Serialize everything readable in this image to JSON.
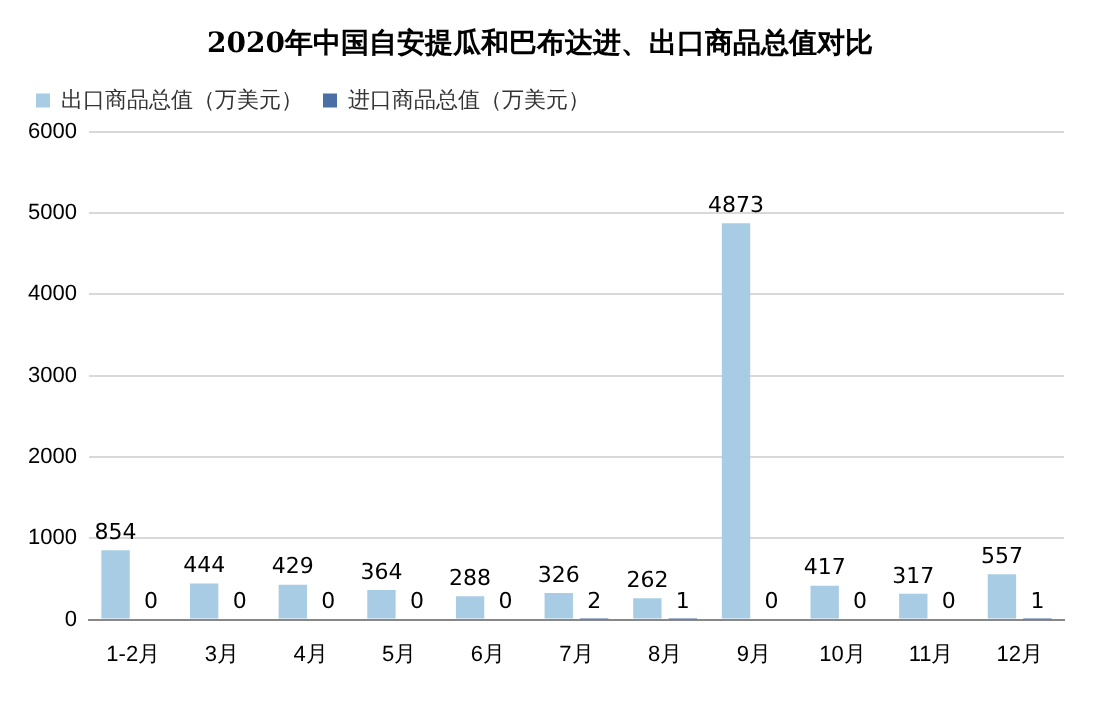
{
  "chart_data": {
    "type": "bar",
    "title": "2020年中国自安提瓜和巴布达进、出口商品总值对比",
    "categories": [
      "1-2月",
      "3月",
      "4月",
      "5月",
      "6月",
      "7月",
      "8月",
      "9月",
      "10月",
      "11月",
      "12月"
    ],
    "series": [
      {
        "name": "出口商品总值（万美元）",
        "color": "#a8cce4",
        "values": [
          854,
          444,
          429,
          364,
          288,
          326,
          262,
          4873,
          417,
          317,
          557
        ]
      },
      {
        "name": "进口商品总值（万美元）",
        "color": "#4a6fa5",
        "values": [
          0,
          0,
          0,
          0,
          0,
          2,
          1,
          0,
          0,
          0,
          1
        ]
      }
    ],
    "ylim": [
      0,
      6000
    ],
    "yticks": [
      0,
      1000,
      2000,
      3000,
      4000,
      5000,
      6000
    ],
    "grid": "y",
    "legend": "top left",
    "data_labels": true
  }
}
